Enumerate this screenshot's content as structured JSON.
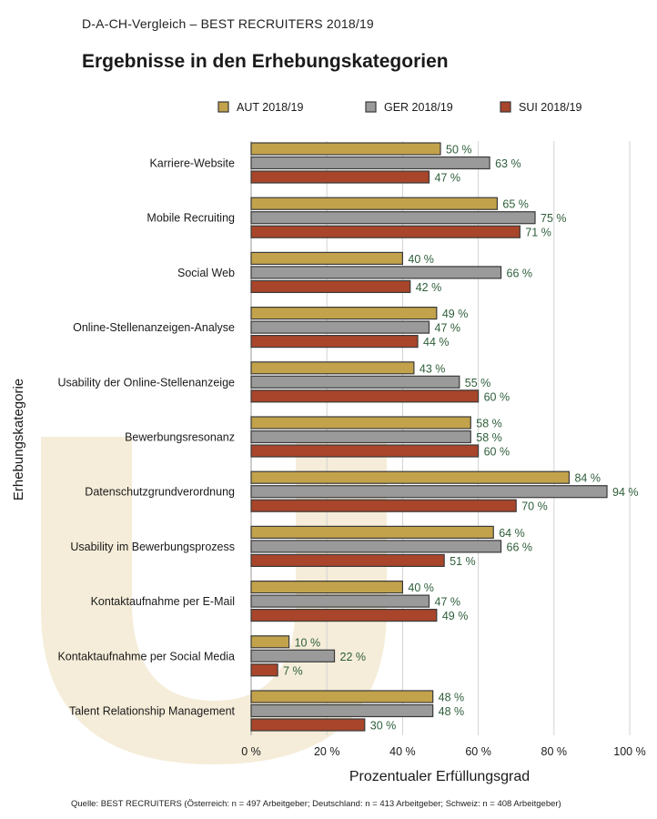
{
  "header": {
    "supertitle": "D-A-CH-Vergleich – BEST RECRUITERS 2018/19",
    "title": "Ergebnisse in den Erhebungskategorien"
  },
  "chart_data": {
    "type": "bar",
    "orientation": "horizontal",
    "title": "Ergebnisse in den Erhebungskategorien",
    "xlabel": "Prozentualer Erfüllungsgrad",
    "ylabel": "Erhebungskategorie",
    "xlim": [
      0,
      100
    ],
    "xticks": [
      0,
      20,
      40,
      60,
      80,
      100
    ],
    "xtick_labels": [
      "0 %",
      "20 %",
      "40 %",
      "60 %",
      "80 %",
      "100 %"
    ],
    "value_suffix": " %",
    "legend_position": "top",
    "categories": [
      "Karriere-Website",
      "Mobile Recruiting",
      "Social Web",
      "Online-Stellenanzeigen-Analyse",
      "Usability der Online-Stellenanzeige",
      "Bewerbungsresonanz",
      "Datenschutzgrundverordnung",
      "Usability im Bewerbungsprozess",
      "Kontaktaufnahme per E-Mail",
      "Kontaktaufnahme per Social Media",
      "Talent Relationship Management"
    ],
    "series": [
      {
        "name": "AUT 2018/19",
        "color": "#c2a24b",
        "values": [
          50,
          65,
          40,
          49,
          43,
          58,
          84,
          64,
          40,
          10,
          48
        ]
      },
      {
        "name": "GER 2018/19",
        "color": "#9a9a9a",
        "values": [
          63,
          75,
          66,
          47,
          55,
          58,
          94,
          66,
          47,
          22,
          48
        ]
      },
      {
        "name": "SUI 2018/19",
        "color": "#a8452a",
        "values": [
          47,
          71,
          42,
          44,
          60,
          60,
          70,
          51,
          49,
          7,
          30
        ]
      }
    ]
  },
  "footer": {
    "source": "Quelle: BEST RECRUITERS (Österreich: n = 497 Arbeitgeber; Deutschland: n = 413 Arbeitgeber; Schweiz: n = 408 Arbeitgeber)"
  },
  "colors": {
    "bar_border": "#3a3a3a",
    "value_label": "#2e5e3a",
    "watermark": "#f3ead2"
  }
}
